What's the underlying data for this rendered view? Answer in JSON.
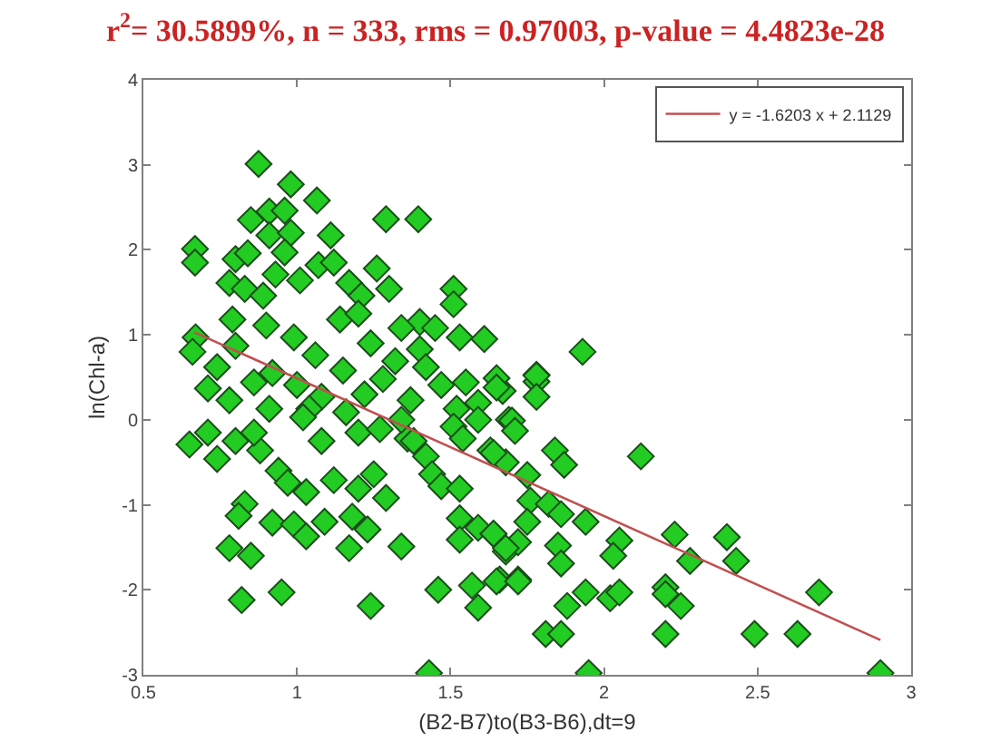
{
  "chart_data": {
    "type": "scatter",
    "title": "r$^{2}$= 30.5899%, n = 333, rms = 0.97003, p-value = 4.4823e-28",
    "xlabel": "(B2-B7)to(B3-B6),dt=9",
    "ylabel": "ln(Chl-a)",
    "xlim": [
      0.5,
      3
    ],
    "xticks": [
      0.5,
      1,
      1.5,
      2,
      2.5,
      3
    ],
    "ylim": [
      -3,
      4
    ],
    "yticks": [
      -3,
      -2,
      -1,
      0,
      1,
      2,
      3,
      4
    ],
    "grid": false,
    "legend": "top right",
    "marker": "diamond",
    "series": [
      {
        "color": "#22cc22",
        "x": [
          0.875,
          0.98,
          1.065,
          0.85,
          0.91,
          0.96,
          1.29,
          1.395,
          0.668,
          0.668,
          1.11,
          0.91,
          0.98,
          0.96,
          0.8,
          0.84,
          1.07,
          1.01,
          1.12,
          1.26,
          1.51,
          1.51,
          0.78,
          0.83,
          0.89,
          0.93,
          1.17,
          1.3,
          1.21,
          1.4,
          1.45,
          1.53,
          1.61,
          0.67,
          0.66,
          0.74,
          0.8,
          0.79,
          0.9,
          0.99,
          1.06,
          1.14,
          1.2,
          1.24,
          1.32,
          1.34,
          1.4,
          1.42,
          1.47,
          1.55,
          1.59,
          1.67,
          1.52,
          0.71,
          0.78,
          0.86,
          0.92,
          1.0,
          1.08,
          1.15,
          1.22,
          1.28,
          1.37,
          0.91,
          1.04,
          1.16,
          1.93,
          1.78,
          1.78,
          1.65,
          1.69,
          0.65,
          0.74,
          0.71,
          0.8,
          0.88,
          0.94,
          0.97,
          0.86,
          1.02,
          1.08,
          1.03,
          1.12,
          1.2,
          1.25,
          1.29,
          1.2,
          1.27,
          1.36,
          1.34,
          1.38,
          1.42,
          1.44,
          1.47,
          1.53,
          1.51,
          1.54,
          1.59,
          1.63,
          1.68,
          0.83,
          0.81,
          0.92,
          0.99,
          1.03,
          1.09,
          1.18,
          1.23,
          1.17,
          1.34,
          0.78,
          0.85,
          1.53,
          1.53,
          1.59,
          1.64,
          1.68,
          1.66,
          1.72,
          1.57,
          1.59,
          1.46,
          0.95,
          0.82,
          1.24,
          1.43,
          1.78,
          1.78,
          1.65,
          1.7,
          1.71,
          1.64,
          1.84,
          1.87,
          2.12,
          1.75,
          1.76,
          1.82,
          1.86,
          1.94,
          1.75,
          1.64,
          1.72,
          1.68,
          1.85,
          1.86,
          2.05,
          2.03,
          2.23,
          2.28,
          2.4,
          2.43,
          2.7,
          1.65,
          1.72,
          1.94,
          1.88,
          2.02,
          2.05,
          2.2,
          2.2,
          2.25,
          1.81,
          1.86,
          2.2,
          2.49,
          2.63,
          1.95,
          2.9
        ],
        "values": [
          3.01,
          2.77,
          2.58,
          2.35,
          2.45,
          2.46,
          2.36,
          2.36,
          2.01,
          1.85,
          2.17,
          2.17,
          2.2,
          1.97,
          1.89,
          1.96,
          1.82,
          1.64,
          1.85,
          1.78,
          1.54,
          1.36,
          1.61,
          1.54,
          1.46,
          1.71,
          1.61,
          1.54,
          1.46,
          1.15,
          1.08,
          0.97,
          0.95,
          0.97,
          0.8,
          0.62,
          0.87,
          1.18,
          1.11,
          0.97,
          0.76,
          1.18,
          1.25,
          0.9,
          0.69,
          1.08,
          0.83,
          0.62,
          0.41,
          0.44,
          0.2,
          0.34,
          0.13,
          0.37,
          0.23,
          0.44,
          0.55,
          0.41,
          0.27,
          0.58,
          0.3,
          0.48,
          0.23,
          0.13,
          0.13,
          0.09,
          0.8,
          0.53,
          0.45,
          0.49,
          0.0,
          -0.29,
          -0.46,
          -0.15,
          -0.25,
          -0.36,
          -0.6,
          -0.74,
          -0.15,
          0.03,
          -0.25,
          -0.85,
          -0.71,
          -0.81,
          -0.64,
          -0.92,
          -0.15,
          -0.11,
          -0.22,
          0.0,
          -0.25,
          -0.43,
          -0.64,
          -0.78,
          -0.81,
          -0.08,
          -0.22,
          0.0,
          -0.36,
          -0.5,
          -0.99,
          -1.13,
          -1.21,
          -1.23,
          -1.37,
          -1.2,
          -1.14,
          -1.29,
          -1.51,
          -1.49,
          -1.51,
          -1.6,
          -1.16,
          -1.41,
          -1.27,
          -1.34,
          -1.55,
          -1.88,
          -1.88,
          -1.95,
          -2.21,
          -2.0,
          -2.03,
          -2.12,
          -2.19,
          -2.98,
          0.52,
          0.27,
          0.38,
          -0.01,
          -0.13,
          -0.39,
          -0.36,
          -0.53,
          -0.43,
          -0.65,
          -0.95,
          -0.99,
          -1.11,
          -1.2,
          -1.2,
          -1.34,
          -1.44,
          -1.51,
          -1.48,
          -1.69,
          -1.42,
          -1.6,
          -1.35,
          -1.66,
          -1.38,
          -1.66,
          -2.03,
          -1.9,
          -1.9,
          -2.03,
          -2.19,
          -2.1,
          -2.03,
          -1.97,
          -2.05,
          -2.19,
          -2.52,
          -2.52,
          -2.52,
          -2.52,
          -2.52,
          -2.98,
          -2.98
        ]
      },
      {
        "type": "line",
        "name": "y = -1.6203 x + 2.1129",
        "color": "#c05050",
        "marker": "none",
        "x": [
          0.666,
          2.9
        ],
        "values": [
          1.03,
          -2.59
        ]
      }
    ]
  }
}
